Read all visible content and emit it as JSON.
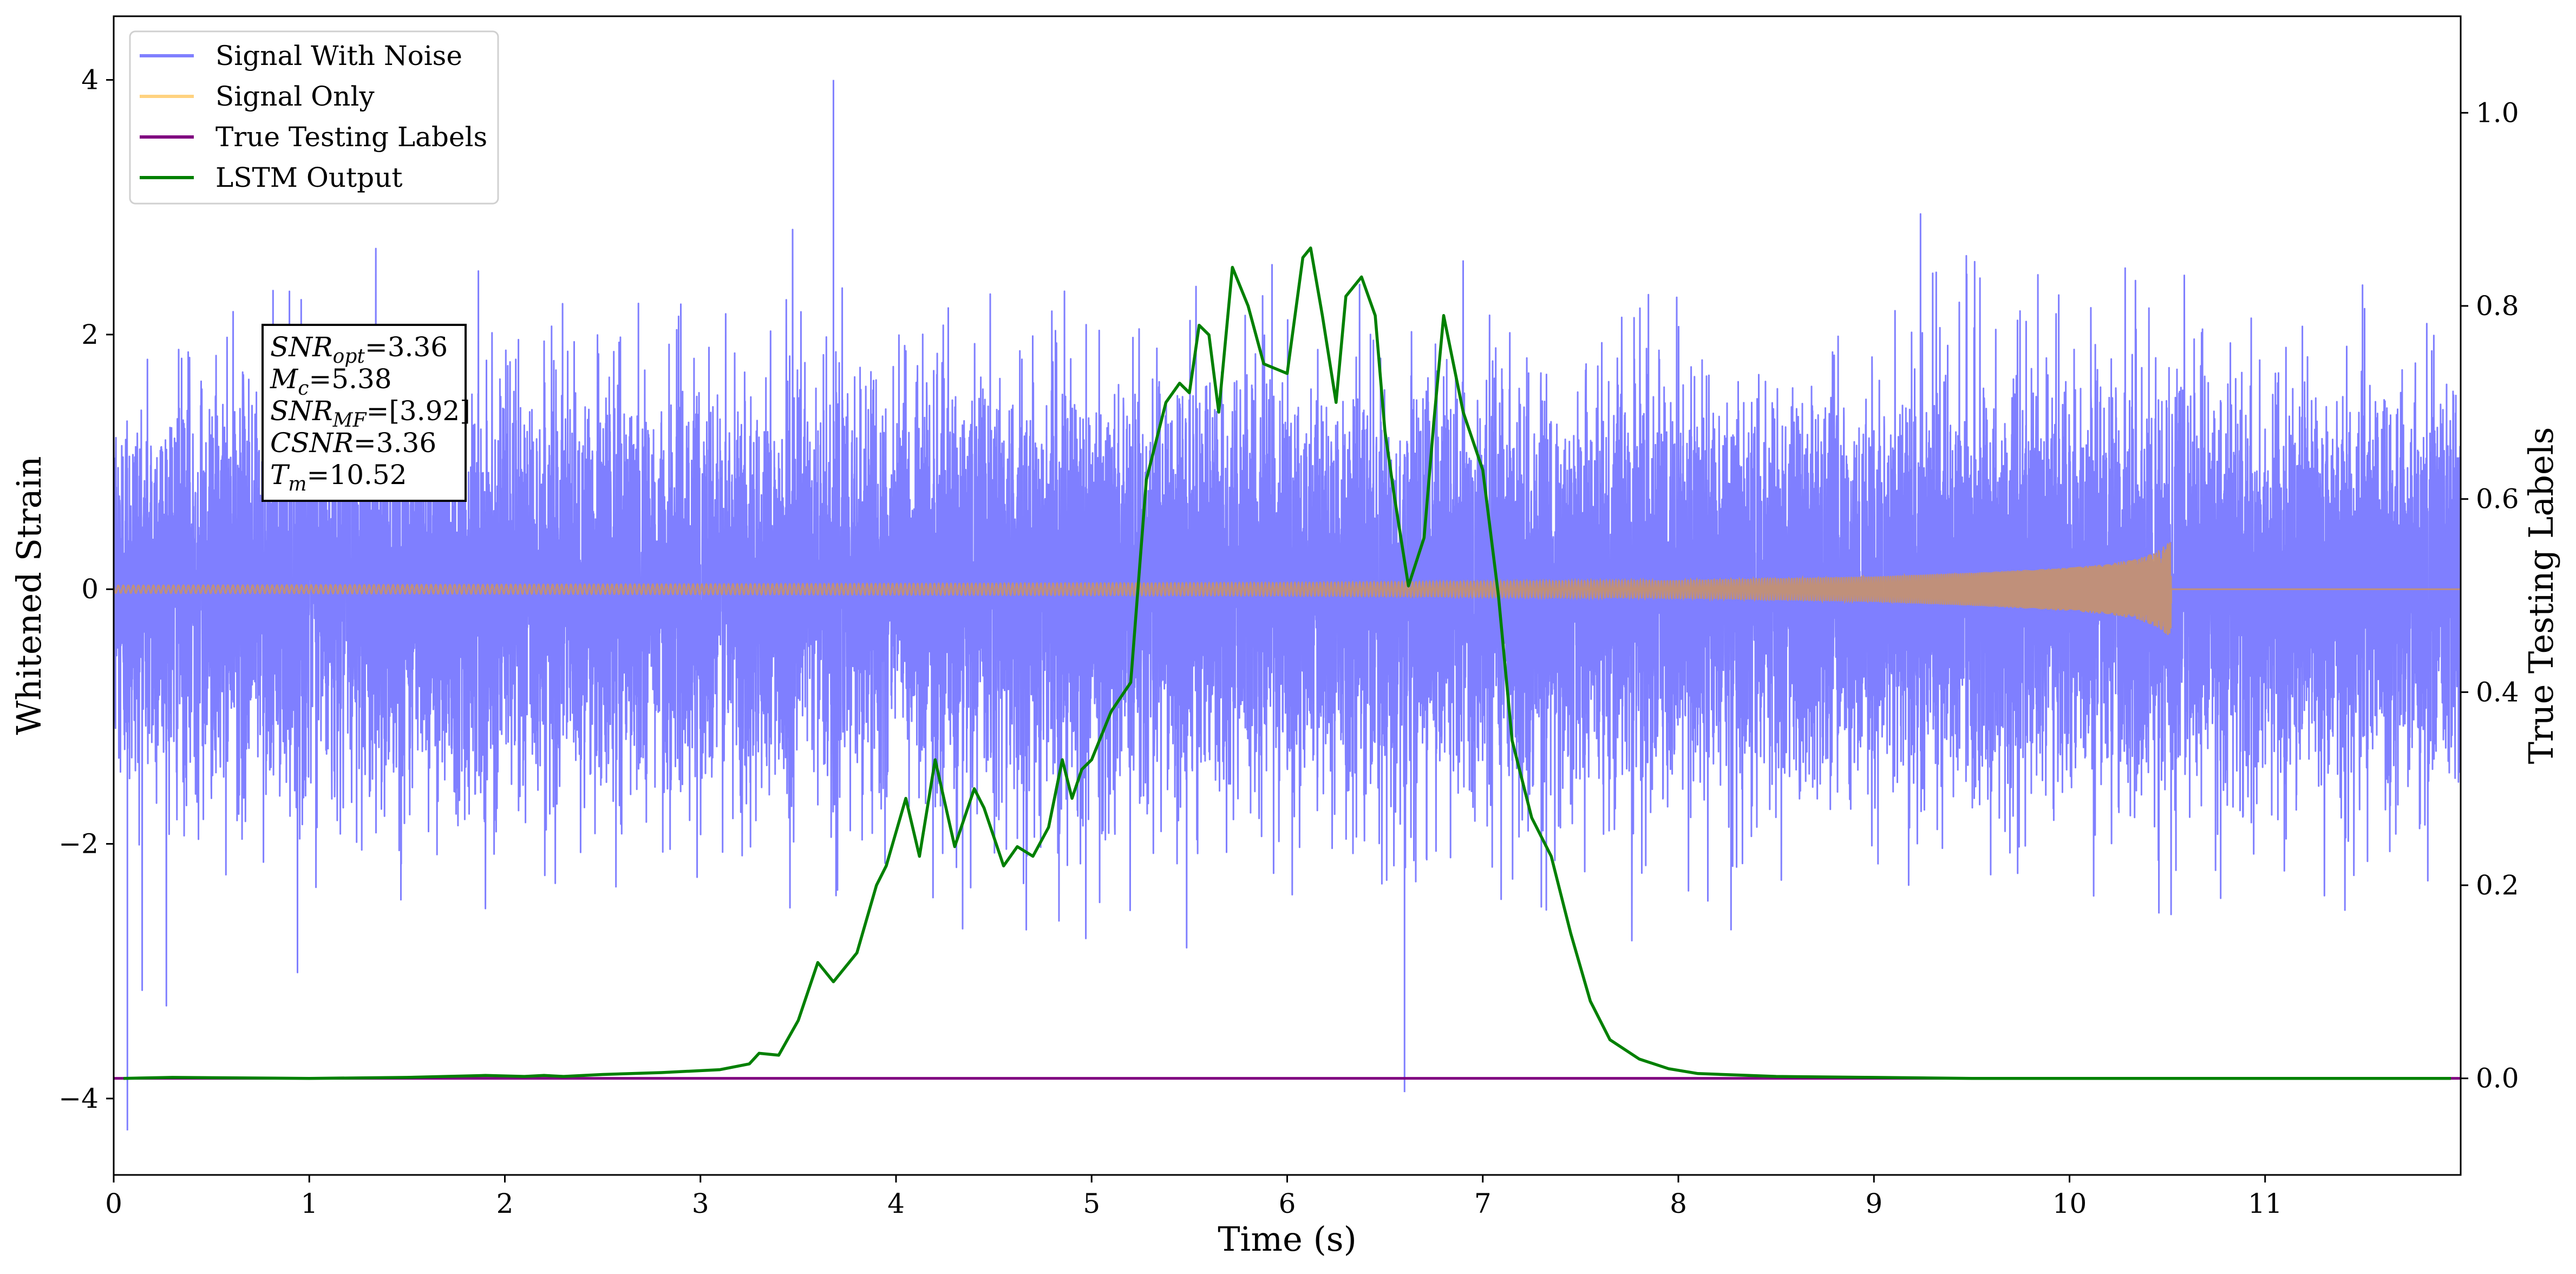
{
  "chart_data": {
    "type": "line",
    "title": "",
    "xlabel": "Time (s)",
    "ylabel": "Whitened Strain",
    "y2label": "True Testing Labels",
    "xlim": [
      0,
      12
    ],
    "ylim": [
      -4.6,
      4.5
    ],
    "y2lim": [
      -0.1,
      1.1
    ],
    "grid": false,
    "legend_placement": "top-left",
    "x_ticks": [
      0,
      1,
      2,
      3,
      4,
      5,
      6,
      7,
      8,
      9,
      10,
      11
    ],
    "x_tick_labels": [
      "0",
      "1",
      "2",
      "3",
      "4",
      "5",
      "6",
      "7",
      "8",
      "9",
      "10",
      "11"
    ],
    "y_ticks": [
      -4,
      -2,
      0,
      2,
      4
    ],
    "y_tick_labels": [
      "−4",
      "−2",
      "0",
      "2",
      "4"
    ],
    "y2_ticks": [
      0.0,
      0.2,
      0.4,
      0.6,
      0.8,
      1.0
    ],
    "y2_tick_labels": [
      "0.0",
      "0.2",
      "0.4",
      "0.6",
      "0.8",
      "1.0"
    ],
    "annotation": {
      "lines": [
        {
          "main": "SNR",
          "sub": "opt",
          "value": "=3.36"
        },
        {
          "main": "M",
          "sub": "c",
          "value": "=5.38"
        },
        {
          "main": "SNR",
          "sub": "MF",
          "value": "=[3.92]"
        },
        {
          "main": "CSNR",
          "sub": "",
          "value": "=3.36"
        },
        {
          "main": "T",
          "sub": "m",
          "value": "=10.52"
        }
      ]
    },
    "series": [
      {
        "name": "Signal With Noise",
        "color": "#7f7fff",
        "axis": "left",
        "style": "dense noise band",
        "x_range": [
          0,
          12
        ],
        "typical_range": [
          -1.6,
          1.6
        ],
        "max": 4.0,
        "min": -4.25
      },
      {
        "name": "Signal Only",
        "color": "#ffd27f",
        "axis": "left",
        "style": "chirp",
        "x_range": [
          0,
          10.52
        ],
        "envelope": {
          "x": [
            0,
            6,
            8,
            9,
            9.5,
            10,
            10.2,
            10.35,
            10.45,
            10.5,
            10.52
          ],
          "amp": [
            0.03,
            0.05,
            0.07,
            0.1,
            0.13,
            0.17,
            0.2,
            0.24,
            0.3,
            0.36,
            0.38
          ]
        }
      },
      {
        "name": "True Testing Labels",
        "color": "#800080",
        "axis": "right",
        "x": [
          0,
          12
        ],
        "y": [
          0,
          0
        ]
      },
      {
        "name": "LSTM Output",
        "color": "#008000",
        "axis": "right",
        "x": [
          0.05,
          0.3,
          1,
          1.5,
          1.9,
          2.1,
          2.2,
          2.3,
          2.5,
          2.8,
          3.1,
          3.25,
          3.3,
          3.4,
          3.5,
          3.6,
          3.68,
          3.8,
          3.9,
          3.95,
          4.05,
          4.12,
          4.2,
          4.3,
          4.4,
          4.45,
          4.55,
          4.62,
          4.7,
          4.78,
          4.85,
          4.9,
          4.95,
          5.0,
          5.1,
          5.2,
          5.28,
          5.38,
          5.45,
          5.5,
          5.55,
          5.6,
          5.65,
          5.72,
          5.8,
          5.88,
          6.0,
          6.08,
          6.12,
          6.18,
          6.25,
          6.3,
          6.38,
          6.45,
          6.5,
          6.55,
          6.62,
          6.7,
          6.75,
          6.8,
          6.9,
          7.0,
          7.08,
          7.15,
          7.25,
          7.35,
          7.45,
          7.55,
          7.65,
          7.8,
          7.95,
          8.1,
          8.5,
          9,
          9.5,
          10,
          10.5,
          11,
          11.5,
          11.95
        ],
        "y": [
          0.0,
          0.001,
          0.0,
          0.001,
          0.003,
          0.002,
          0.003,
          0.002,
          0.004,
          0.006,
          0.009,
          0.015,
          0.026,
          0.024,
          0.06,
          0.12,
          0.1,
          0.13,
          0.2,
          0.22,
          0.29,
          0.23,
          0.33,
          0.24,
          0.3,
          0.28,
          0.22,
          0.24,
          0.23,
          0.26,
          0.33,
          0.29,
          0.32,
          0.33,
          0.38,
          0.41,
          0.62,
          0.7,
          0.72,
          0.71,
          0.78,
          0.77,
          0.69,
          0.84,
          0.8,
          0.74,
          0.73,
          0.85,
          0.86,
          0.79,
          0.7,
          0.81,
          0.83,
          0.79,
          0.67,
          0.6,
          0.51,
          0.56,
          0.68,
          0.79,
          0.69,
          0.63,
          0.5,
          0.35,
          0.27,
          0.23,
          0.15,
          0.08,
          0.04,
          0.02,
          0.01,
          0.005,
          0.002,
          0.001,
          0.0,
          0.0,
          0.0,
          0.0,
          0.0,
          0.0
        ]
      }
    ]
  }
}
